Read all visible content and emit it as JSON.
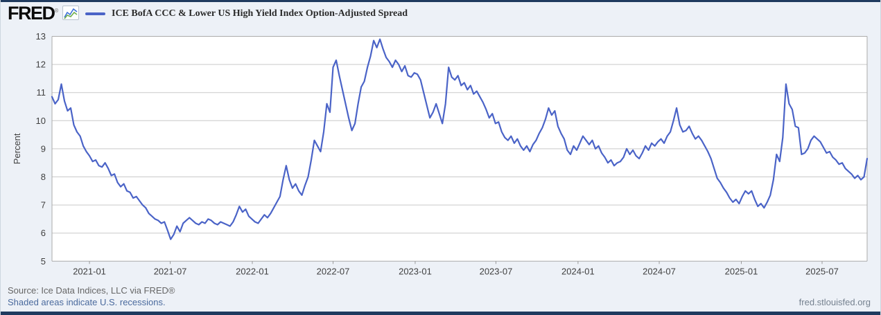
{
  "page": {
    "background": "#edf1f7",
    "accent_bar_color": "#1f3a5f"
  },
  "header": {
    "logo_text": "FRED",
    "registered_mark": "®",
    "logo_icon": "fred-sparkline-icon",
    "legend": {
      "marker": "line-dash",
      "color": "#4a63c7",
      "label": "ICE BofA CCC & Lower US High Yield Index Option-Adjusted Spread"
    }
  },
  "y_axis": {
    "label": "Percent",
    "ticks": [
      13,
      12,
      11,
      10,
      9,
      8,
      7,
      6,
      5
    ],
    "min": 5,
    "max": 13
  },
  "x_axis": {
    "tick_labels": [
      "2021-01",
      "2021-07",
      "2022-01",
      "2022-07",
      "2023-01",
      "2023-07",
      "2024-01",
      "2024-07",
      "2025-01",
      "2025-07"
    ]
  },
  "footer": {
    "source": "Source: Ice Data Indices, LLC via FRED®",
    "shaded_note": "Shaded areas indicate U.S. recessions.",
    "site_link": "fred.stlouisfed.org",
    "source_color": "#666666",
    "link_color": "#4a6a9d"
  },
  "chart_data": {
    "type": "line",
    "title": "ICE BofA CCC & Lower US High Yield Index Option-Adjusted Spread",
    "ylabel": "Percent",
    "unit": "percent",
    "ylim": [
      5,
      13
    ],
    "grid": "horizontal",
    "legend_position": "top-left",
    "line_color": "#4a63c7",
    "frequency": "weekly",
    "x_start": "2020-10-09",
    "x_end": "2025-10-10",
    "x_tick_dates": [
      "2021-01-01",
      "2021-07-01",
      "2022-01-01",
      "2022-07-01",
      "2023-01-01",
      "2023-07-01",
      "2024-01-01",
      "2024-07-01",
      "2025-01-01",
      "2025-07-01"
    ],
    "x_tick_labels": [
      "2021-01",
      "2021-07",
      "2022-01",
      "2022-07",
      "2023-01",
      "2023-07",
      "2024-01",
      "2024-07",
      "2025-01",
      "2025-07"
    ],
    "values": [
      10.85,
      10.6,
      10.75,
      11.3,
      10.7,
      10.35,
      10.45,
      9.85,
      9.6,
      9.45,
      9.1,
      8.9,
      8.75,
      8.55,
      8.6,
      8.4,
      8.35,
      8.5,
      8.3,
      8.05,
      8.1,
      7.8,
      7.65,
      7.75,
      7.5,
      7.45,
      7.25,
      7.3,
      7.15,
      7.0,
      6.9,
      6.7,
      6.6,
      6.5,
      6.45,
      6.35,
      6.4,
      6.1,
      5.78,
      5.95,
      6.25,
      6.05,
      6.35,
      6.45,
      6.55,
      6.45,
      6.35,
      6.3,
      6.4,
      6.35,
      6.5,
      6.45,
      6.35,
      6.3,
      6.4,
      6.35,
      6.3,
      6.25,
      6.4,
      6.65,
      6.95,
      6.75,
      6.85,
      6.6,
      6.5,
      6.4,
      6.35,
      6.5,
      6.65,
      6.55,
      6.7,
      6.9,
      7.1,
      7.3,
      7.9,
      8.4,
      7.9,
      7.6,
      7.75,
      7.5,
      7.35,
      7.7,
      8.0,
      8.6,
      9.3,
      9.1,
      8.9,
      9.6,
      10.6,
      10.3,
      11.9,
      12.15,
      11.6,
      11.1,
      10.6,
      10.1,
      9.65,
      9.9,
      10.6,
      11.2,
      11.4,
      11.9,
      12.3,
      12.85,
      12.6,
      12.9,
      12.55,
      12.25,
      12.1,
      11.9,
      12.15,
      12.0,
      11.75,
      11.95,
      11.6,
      11.55,
      11.7,
      11.65,
      11.45,
      11.0,
      10.55,
      10.1,
      10.3,
      10.6,
      10.25,
      9.9,
      10.6,
      11.9,
      11.55,
      11.45,
      11.6,
      11.25,
      11.35,
      11.1,
      11.25,
      10.95,
      11.05,
      10.85,
      10.65,
      10.4,
      10.1,
      10.25,
      9.9,
      9.95,
      9.6,
      9.4,
      9.3,
      9.45,
      9.2,
      9.35,
      9.1,
      8.95,
      9.1,
      8.9,
      9.15,
      9.3,
      9.55,
      9.75,
      10.05,
      10.45,
      10.2,
      10.35,
      9.8,
      9.55,
      9.35,
      8.95,
      8.8,
      9.1,
      8.95,
      9.2,
      9.45,
      9.3,
      9.15,
      9.3,
      9.0,
      9.1,
      8.85,
      8.7,
      8.5,
      8.6,
      8.4,
      8.5,
      8.55,
      8.7,
      9.0,
      8.8,
      8.95,
      8.75,
      8.65,
      8.85,
      9.1,
      8.95,
      9.2,
      9.1,
      9.25,
      9.35,
      9.2,
      9.45,
      9.6,
      10.0,
      10.45,
      9.85,
      9.6,
      9.65,
      9.8,
      9.55,
      9.35,
      9.45,
      9.3,
      9.1,
      8.9,
      8.65,
      8.3,
      7.95,
      7.8,
      7.6,
      7.45,
      7.25,
      7.1,
      7.2,
      7.05,
      7.3,
      7.5,
      7.4,
      7.5,
      7.2,
      6.95,
      7.05,
      6.9,
      7.1,
      7.35,
      7.9,
      8.8,
      8.55,
      9.4,
      11.3,
      10.6,
      10.4,
      9.8,
      9.75,
      8.8,
      8.85,
      9.0,
      9.3,
      9.45,
      9.35,
      9.25,
      9.05,
      8.85,
      8.9,
      8.7,
      8.6,
      8.45,
      8.5,
      8.3,
      8.2,
      8.1,
      7.95,
      8.05,
      7.9,
      8.0,
      8.65
    ]
  }
}
